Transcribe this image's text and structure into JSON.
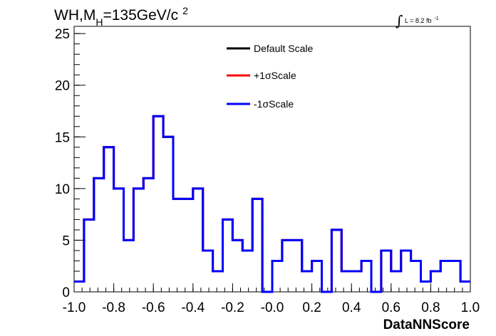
{
  "chart_data": {
    "type": "line",
    "title": {
      "main": "WH,M",
      "sub": "H",
      "rest": "=135GeV/c",
      "sup": "2"
    },
    "lumi": {
      "integral": "∫",
      "text": "L = 8.2 fb",
      "sup": "-1"
    },
    "xlabel": "DataNNScore",
    "ylabel": "",
    "xlim": [
      -1.0,
      1.0
    ],
    "ylim": [
      0,
      25.7
    ],
    "x_ticks": [
      "-1.0",
      "-0.8",
      "-0.6",
      "-0.4",
      "-0.2",
      "-0.0",
      "0.2",
      "0.4",
      "0.6",
      "0.8",
      "1.0"
    ],
    "y_ticks": [
      "0",
      "5",
      "10",
      "15",
      "20",
      "25"
    ],
    "grid": false,
    "legend_position": "top-center",
    "bin_edges": [
      -1.0,
      0.05
    ],
    "series": [
      {
        "name": "Default Scale",
        "color": "#000000",
        "values": [
          1,
          7,
          11,
          14,
          10,
          5,
          10,
          11,
          17,
          15,
          9,
          9,
          10,
          4,
          2,
          7,
          5,
          4,
          9,
          0,
          3,
          5,
          5,
          2,
          3,
          0,
          6,
          2,
          2,
          3,
          0,
          4,
          2,
          4,
          3,
          1,
          2,
          3,
          3,
          1
        ]
      },
      {
        "name": "+1σScale",
        "color": "#ff0000",
        "values": [
          1,
          7,
          11,
          14,
          10,
          5,
          10,
          11,
          17,
          15,
          9,
          9,
          10,
          4,
          2,
          7,
          5,
          4,
          9,
          0,
          3,
          5,
          5,
          2,
          3,
          0,
          6,
          2,
          2,
          3,
          0,
          4,
          2,
          4,
          3,
          1,
          2,
          3,
          3,
          1
        ]
      },
      {
        "name": "-1σScale",
        "color": "#0000ff",
        "values": [
          1,
          7,
          11,
          14,
          10,
          5,
          10,
          11,
          17,
          15,
          9,
          9,
          10,
          4,
          2,
          7,
          5,
          4,
          9,
          0,
          3,
          5,
          5,
          2,
          3,
          0,
          6,
          2,
          2,
          3,
          0,
          4,
          2,
          4,
          3,
          1,
          2,
          3,
          3,
          1
        ]
      }
    ]
  }
}
